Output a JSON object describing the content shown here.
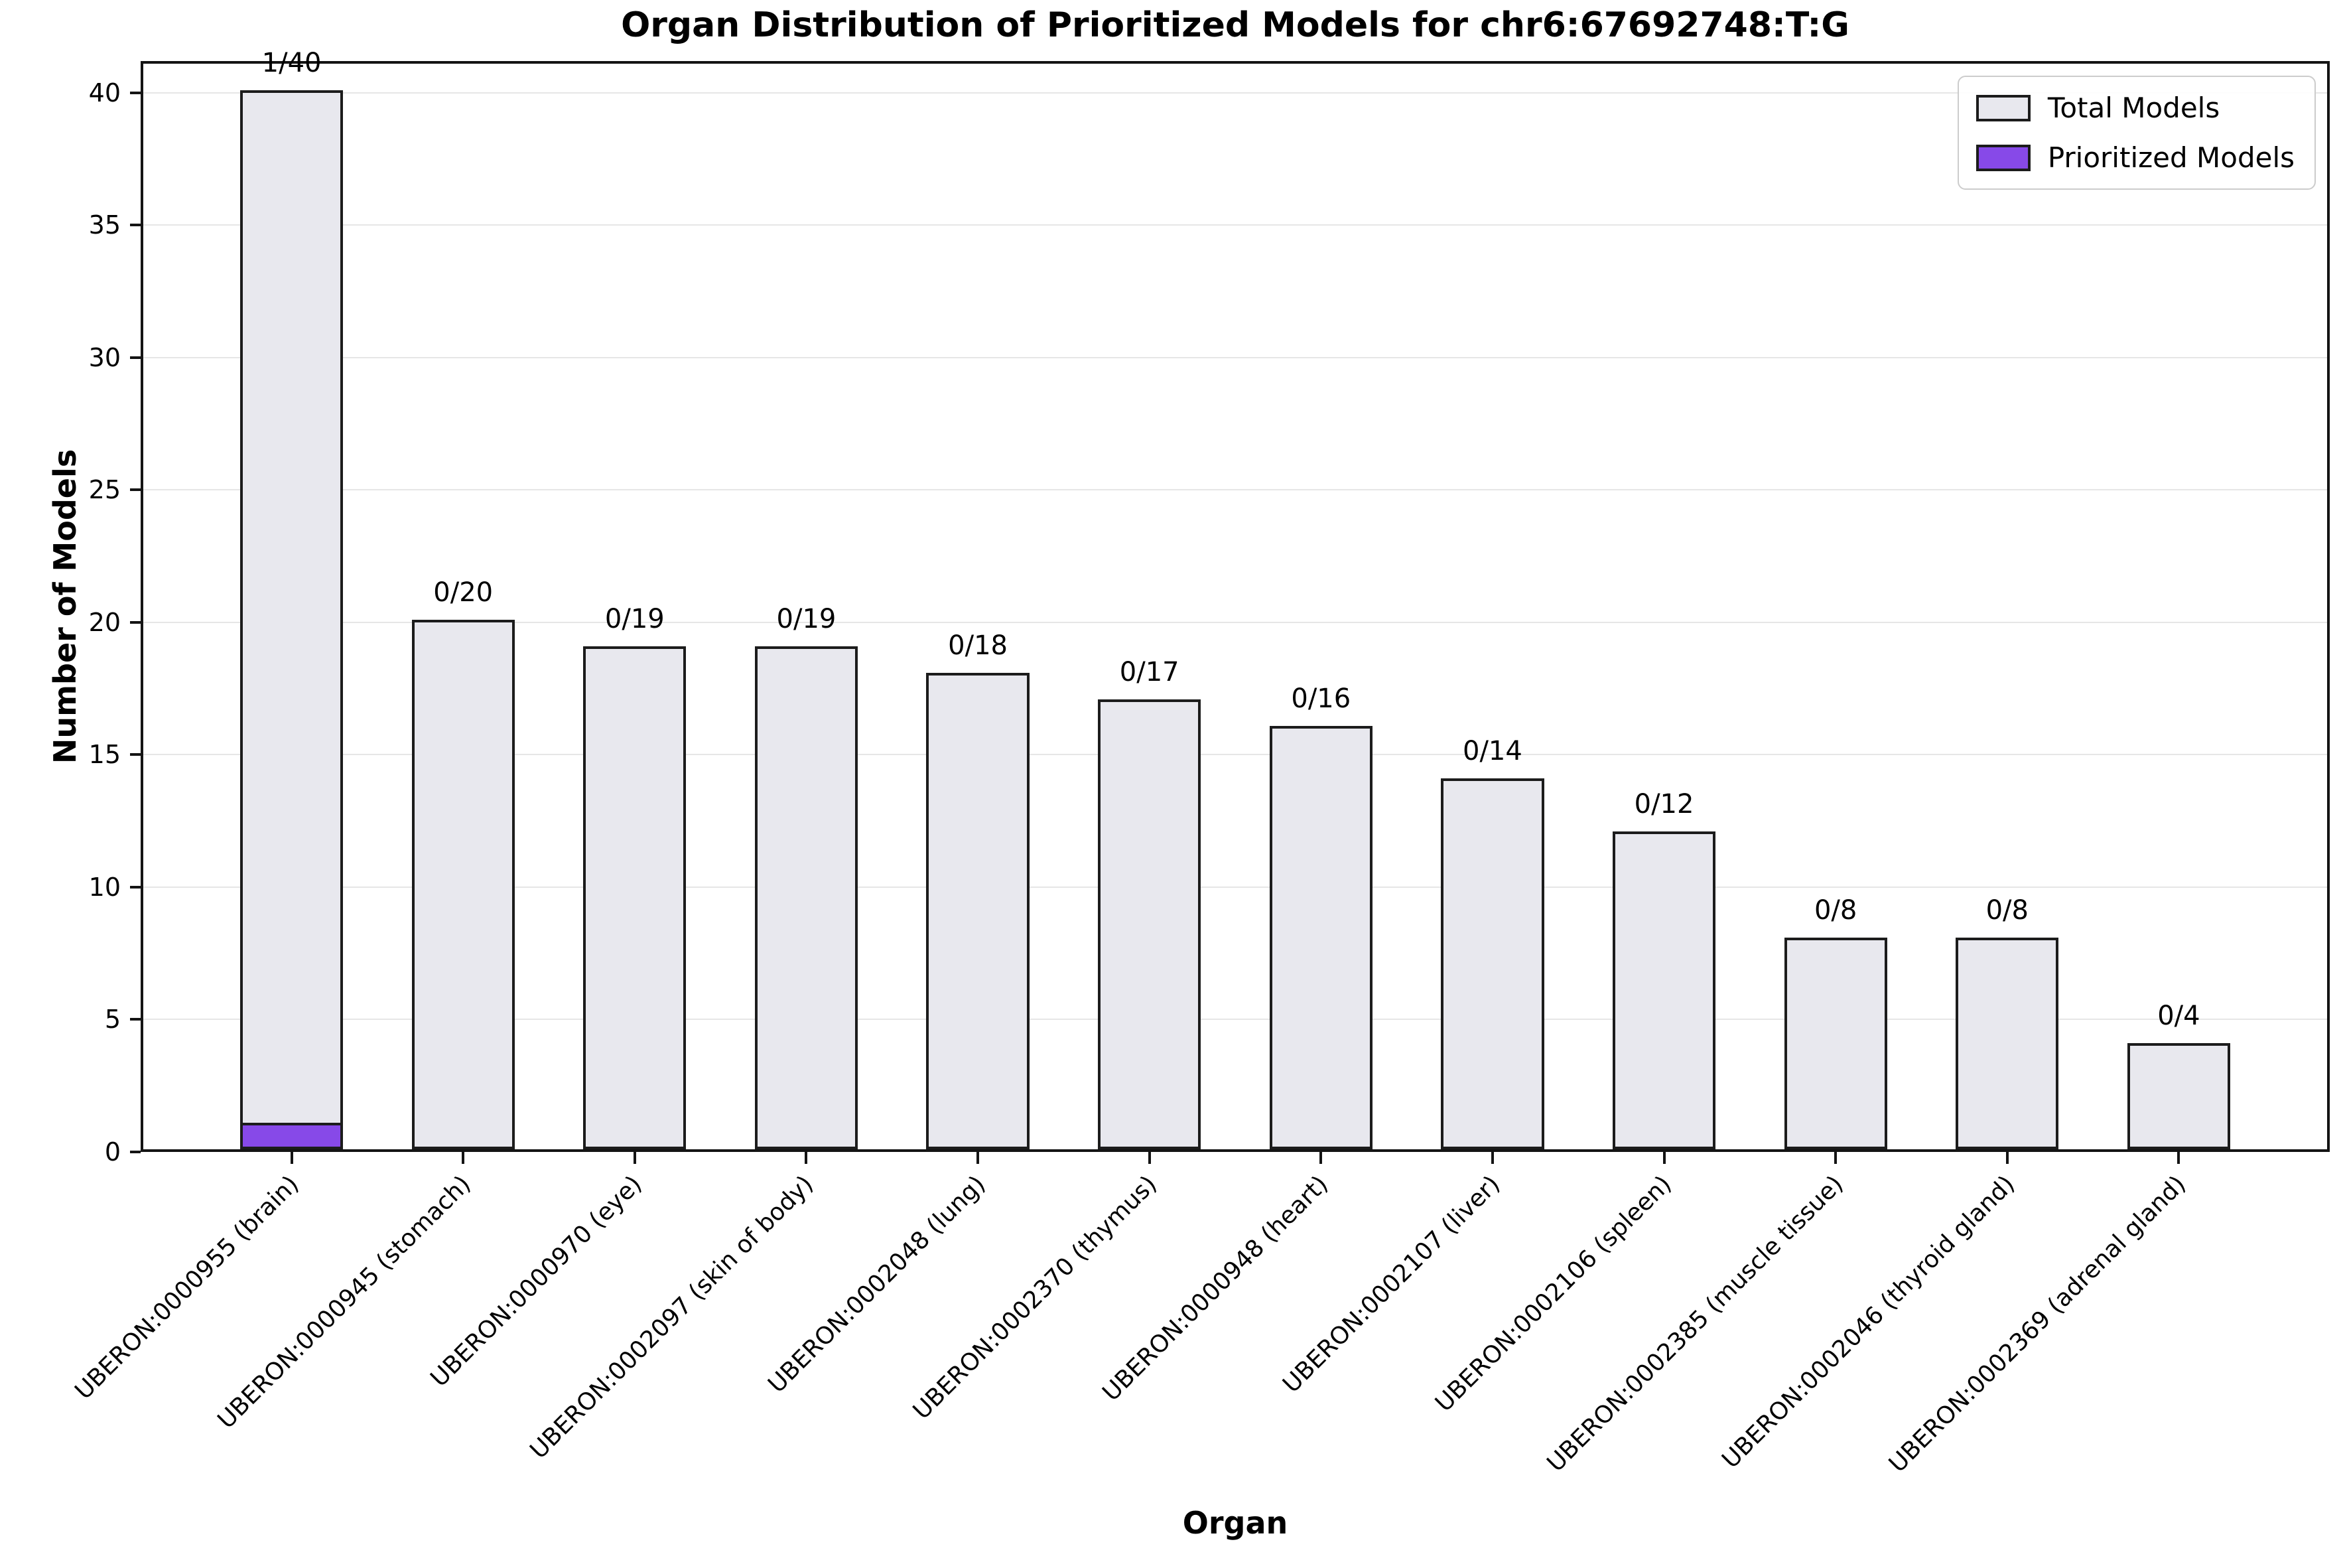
{
  "figure": {
    "title": "Organ Distribution of Prioritized Models for chr6:67692748:T:G",
    "xlabel": "Organ",
    "ylabel": "Number of Models"
  },
  "legend": {
    "position": "upper right",
    "items": [
      {
        "label": "Total Models",
        "color": "#e8e8ee"
      },
      {
        "label": "Prioritized Models",
        "color": "#8749e8"
      }
    ]
  },
  "chart_data": {
    "type": "bar",
    "title": "Organ Distribution of Prioritized Models for chr6:67692748:T:G",
    "xlabel": "Organ",
    "ylabel": "Number of Models",
    "ylim": [
      0,
      41.2
    ],
    "yticks": [
      0,
      5,
      10,
      15,
      20,
      25,
      30,
      35,
      40
    ],
    "grid": "horizontal",
    "legend_position": "upper right",
    "categories": [
      "UBERON:0000955 (brain)",
      "UBERON:0000945 (stomach)",
      "UBERON:0000970 (eye)",
      "UBERON:0002097 (skin of body)",
      "UBERON:0002048 (lung)",
      "UBERON:0002370 (thymus)",
      "UBERON:0000948 (heart)",
      "UBERON:0002107 (liver)",
      "UBERON:0002106 (spleen)",
      "UBERON:0002385 (muscle tissue)",
      "UBERON:0002046 (thyroid gland)",
      "UBERON:0002369 (adrenal gland)"
    ],
    "series": [
      {
        "name": "Total Models",
        "values": [
          40,
          20,
          19,
          19,
          18,
          17,
          16,
          14,
          12,
          8,
          8,
          4
        ],
        "color": "#e8e8ee",
        "edge_color": "#1c1c1c"
      },
      {
        "name": "Prioritized Models",
        "values": [
          1,
          0,
          0,
          0,
          0,
          0,
          0,
          0,
          0,
          0,
          0,
          0
        ],
        "color": "#8749e8",
        "edge_color": "#1c1c1c"
      }
    ],
    "bar_labels": [
      "1/40",
      "0/20",
      "0/19",
      "0/19",
      "0/18",
      "0/17",
      "0/16",
      "0/14",
      "0/12",
      "0/8",
      "0/8",
      "0/4"
    ]
  }
}
